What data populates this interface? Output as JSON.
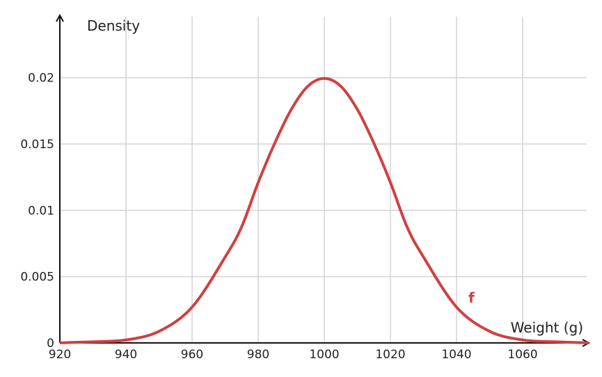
{
  "chart_data": {
    "type": "line",
    "title": "",
    "xlabel": "Weight (g)",
    "ylabel": "Density",
    "xlim": [
      920,
      1080
    ],
    "ylim": [
      0,
      0.024
    ],
    "x_ticks": [
      920,
      940,
      960,
      980,
      1000,
      1020,
      1040,
      1060
    ],
    "y_ticks": [
      {
        "value": 0,
        "label": "0"
      },
      {
        "value": 0.005,
        "label": "0.005"
      },
      {
        "value": 0.01,
        "label": "0.01"
      },
      {
        "value": 0.015,
        "label": "0.015"
      },
      {
        "value": 0.02,
        "label": "0.02"
      }
    ],
    "grid": true,
    "series": [
      {
        "name": "f",
        "color": "#d04040",
        "x": [
          920,
          930,
          940,
          950,
          960,
          970,
          975,
          980,
          985,
          990,
          995,
          1000,
          1005,
          1010,
          1015,
          1020,
          1025,
          1030,
          1040,
          1050,
          1060,
          1070,
          1080
        ],
        "y": [
          6.7e-06,
          8.76e-05,
          0.000222,
          0.000876,
          0.0027,
          0.006476,
          0.008764,
          0.012098,
          0.015059,
          0.017603,
          0.019352,
          0.019947,
          0.019352,
          0.017603,
          0.015059,
          0.012098,
          0.008764,
          0.006476,
          0.0027,
          0.000876,
          0.000222,
          8.76e-05,
          6.7e-06
        ]
      }
    ]
  }
}
